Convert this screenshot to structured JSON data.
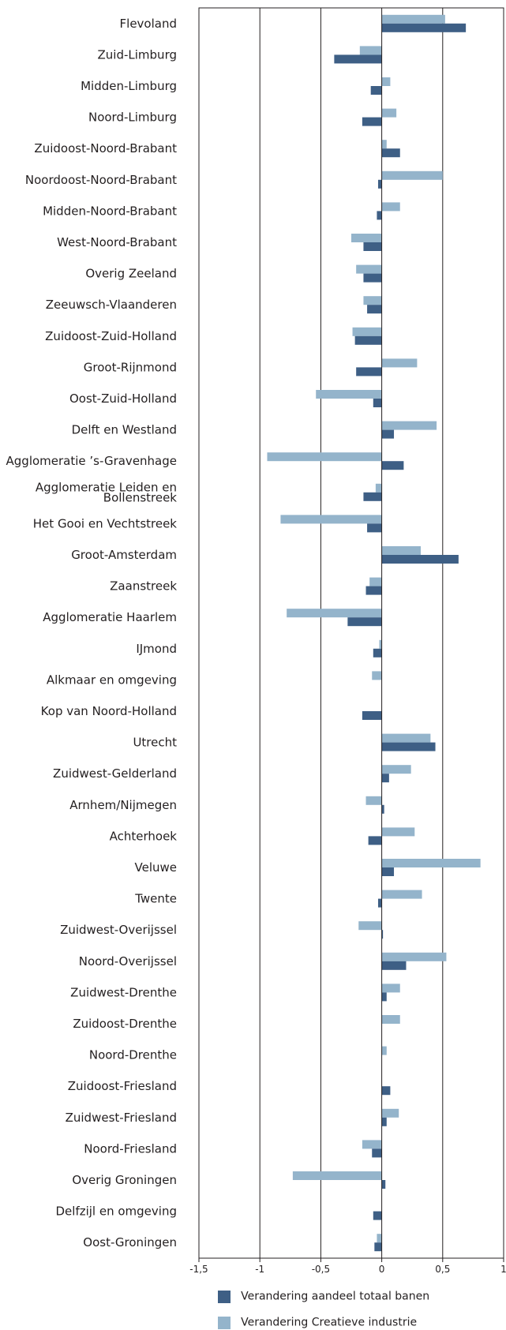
{
  "chart_data": {
    "type": "bar",
    "orientation": "horizontal",
    "categories": [
      "Flevoland",
      "Zuid-Limburg",
      "Midden-Limburg",
      "Noord-Limburg",
      "Zuidoost-Noord-Brabant",
      "Noordoost-Noord-Brabant",
      "Midden-Noord-Brabant",
      "West-Noord-Brabant",
      "Overig Zeeland",
      "Zeeuwsch-Vlaanderen",
      "Zuidoost-Zuid-Holland",
      "Groot-Rijnmond",
      "Oost-Zuid-Holland",
      "Delft en Westland",
      "Agglomeratie ’s-Gravenhage",
      "Agglomeratie Leiden en Bollenstreek",
      "Het Gooi en Vechtstreek",
      "Groot-Amsterdam",
      "Zaanstreek",
      "Agglomeratie Haarlem",
      "IJmond",
      "Alkmaar en omgeving",
      "Kop van Noord-Holland",
      "Utrecht",
      "Zuidwest-Gelderland",
      "Arnhem/Nijmegen",
      "Achterhoek",
      "Veluwe",
      "Twente",
      "Zuidwest-Overijssel",
      "Noord-Overijssel",
      "Zuidwest-Drenthe",
      "Zuidoost-Drenthe",
      "Noord-Drenthe",
      "Zuidoost-Friesland",
      "Zuidwest-Friesland",
      "Noord-Friesland",
      "Overig Groningen",
      "Delfzijl en omgeving",
      "Oost-Groningen"
    ],
    "category_lines": [
      [
        "Flevoland"
      ],
      [
        "Zuid-Limburg"
      ],
      [
        "Midden-Limburg"
      ],
      [
        "Noord-Limburg"
      ],
      [
        "Zuidoost-Noord-Brabant"
      ],
      [
        "Noordoost-Noord-Brabant"
      ],
      [
        "Midden-Noord-Brabant"
      ],
      [
        "West-Noord-Brabant"
      ],
      [
        "Overig Zeeland"
      ],
      [
        "Zeeuwsch-Vlaanderen"
      ],
      [
        "Zuidoost-Zuid-Holland"
      ],
      [
        "Groot-Rijnmond"
      ],
      [
        "Oost-Zuid-Holland"
      ],
      [
        "Delft en Westland"
      ],
      [
        "Agglomeratie ’s-Gravenhage"
      ],
      [
        "Agglomeratie Leiden en",
        "Bollenstreek"
      ],
      [
        "Het Gooi en Vechtstreek"
      ],
      [
        "Groot-Amsterdam"
      ],
      [
        "Zaanstreek"
      ],
      [
        "Agglomeratie Haarlem"
      ],
      [
        "IJmond"
      ],
      [
        "Alkmaar en omgeving"
      ],
      [
        "Kop van Noord-Holland"
      ],
      [
        "Utrecht"
      ],
      [
        "Zuidwest-Gelderland"
      ],
      [
        "Arnhem/Nijmegen"
      ],
      [
        "Achterhoek"
      ],
      [
        "Veluwe"
      ],
      [
        "Twente"
      ],
      [
        "Zuidwest-Overijssel"
      ],
      [
        "Noord-Overijssel"
      ],
      [
        "Zuidwest-Drenthe"
      ],
      [
        "Zuidoost-Drenthe"
      ],
      [
        "Noord-Drenthe"
      ],
      [
        "Zuidoost-Friesland"
      ],
      [
        "Zuidwest-Friesland"
      ],
      [
        "Noord-Friesland"
      ],
      [
        "Overig Groningen"
      ],
      [
        "Delfzijl en omgeving"
      ],
      [
        "Oost-Groningen"
      ]
    ],
    "series": [
      {
        "name": "Verandering Creatieve industrie",
        "color": "#94b4cb",
        "values": [
          0.52,
          -0.18,
          0.07,
          0.12,
          0.04,
          0.5,
          0.15,
          -0.25,
          -0.21,
          -0.15,
          -0.24,
          0.29,
          -0.54,
          0.45,
          -0.94,
          -0.05,
          -0.83,
          0.32,
          -0.1,
          -0.78,
          -0.02,
          -0.08,
          0.0,
          0.4,
          0.24,
          -0.13,
          0.27,
          0.81,
          0.33,
          -0.19,
          0.53,
          0.15,
          0.15,
          0.04,
          0.0,
          0.14,
          -0.16,
          -0.73,
          0.0,
          -0.04
        ]
      },
      {
        "name": "Verandering aandeel totaal banen",
        "color": "#3e5f85",
        "values": [
          0.69,
          -0.39,
          -0.09,
          -0.16,
          0.15,
          -0.03,
          -0.04,
          -0.15,
          -0.15,
          -0.12,
          -0.22,
          -0.21,
          -0.07,
          0.1,
          0.18,
          -0.15,
          -0.12,
          0.63,
          -0.13,
          -0.28,
          -0.07,
          0.0,
          -0.16,
          0.44,
          0.06,
          0.02,
          -0.11,
          0.1,
          -0.03,
          0.01,
          0.2,
          0.04,
          0.0,
          0.0,
          0.07,
          0.04,
          -0.08,
          0.03,
          -0.07,
          -0.06
        ]
      }
    ],
    "xlim": [
      -1.5,
      1
    ],
    "xticks": [
      -1.5,
      -1,
      -0.5,
      0,
      0.5,
      1
    ],
    "xtick_labels": [
      "-1,5",
      "-1",
      "-0,5",
      "0",
      "0,5",
      "1"
    ],
    "title": "",
    "xlabel": "",
    "ylabel": "",
    "grid": "vertical gridlines at each x tick",
    "legend_position": "bottom",
    "legend": [
      {
        "label": "Verandering aandeel totaal banen",
        "color": "#3e5f85"
      },
      {
        "label": "Verandering Creatieve industrie",
        "color": "#94b4cb"
      }
    ]
  }
}
